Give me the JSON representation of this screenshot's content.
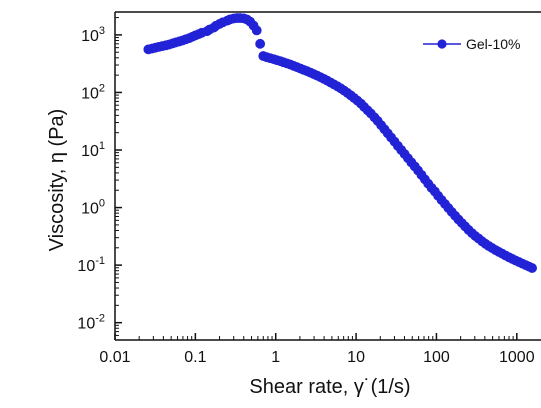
{
  "chart_data": {
    "type": "scatter",
    "title": "",
    "xlabel": "Shear rate, γ˙(1/s)",
    "ylabel": "Viscosity, η (Pa)",
    "x_scale": "log",
    "y_scale": "log",
    "xlim": [
      0.01,
      2000
    ],
    "ylim": [
      0.005,
      2500
    ],
    "grid": false,
    "legend_position": "top-right",
    "x_ticks": [
      {
        "value": 0.01,
        "label": "0.01"
      },
      {
        "value": 0.1,
        "label": "0.1"
      },
      {
        "value": 1,
        "label": "1"
      },
      {
        "value": 10,
        "label": "10"
      },
      {
        "value": 100,
        "label": "100"
      },
      {
        "value": 1000,
        "label": "1000"
      }
    ],
    "y_ticks": [
      {
        "value": 0.01,
        "base": "10",
        "exp": "-2"
      },
      {
        "value": 0.1,
        "base": "10",
        "exp": "-1"
      },
      {
        "value": 1,
        "base": "10",
        "exp": "0"
      },
      {
        "value": 10,
        "base": "10",
        "exp": "1"
      },
      {
        "value": 100,
        "base": "10",
        "exp": "2"
      },
      {
        "value": 1000,
        "base": "10",
        "exp": "3"
      }
    ],
    "series": [
      {
        "name": "Gel-10%",
        "color": "#2222d6",
        "marker": "circle",
        "points": [
          [
            0.026,
            560
          ],
          [
            0.029,
            580
          ],
          [
            0.032,
            600
          ],
          [
            0.035,
            620
          ],
          [
            0.039,
            640
          ],
          [
            0.043,
            660
          ],
          [
            0.047,
            680
          ],
          [
            0.052,
            710
          ],
          [
            0.057,
            740
          ],
          [
            0.063,
            770
          ],
          [
            0.069,
            800
          ],
          [
            0.076,
            840
          ],
          [
            0.084,
            880
          ],
          [
            0.092,
            930
          ],
          [
            0.1,
            980
          ],
          [
            0.11,
            1030
          ],
          [
            0.12,
            1090
          ],
          [
            0.14,
            1160
          ],
          [
            0.15,
            1240
          ],
          [
            0.17,
            1340
          ],
          [
            0.18,
            1440
          ],
          [
            0.2,
            1550
          ],
          [
            0.22,
            1660
          ],
          [
            0.25,
            1770
          ],
          [
            0.27,
            1860
          ],
          [
            0.3,
            1930
          ],
          [
            0.33,
            1960
          ],
          [
            0.36,
            1960
          ],
          [
            0.4,
            1940
          ],
          [
            0.44,
            1850
          ],
          [
            0.48,
            1700
          ],
          [
            0.53,
            1450
          ],
          [
            0.58,
            1200
          ],
          [
            0.64,
            700
          ],
          [
            0.7,
            430
          ],
          [
            0.77,
            410
          ],
          [
            0.85,
            395
          ],
          [
            0.94,
            380
          ],
          [
            1.03,
            365
          ],
          [
            1.14,
            350
          ],
          [
            1.25,
            335
          ],
          [
            1.38,
            320
          ],
          [
            1.52,
            305
          ],
          [
            1.67,
            290
          ],
          [
            1.84,
            275
          ],
          [
            2.03,
            260
          ],
          [
            2.23,
            247
          ],
          [
            2.46,
            234
          ],
          [
            2.71,
            221
          ],
          [
            2.98,
            208
          ],
          [
            3.28,
            196
          ],
          [
            3.61,
            184
          ],
          [
            3.98,
            172
          ],
          [
            4.38,
            160
          ],
          [
            4.82,
            149
          ],
          [
            5.31,
            138
          ],
          [
            5.85,
            128
          ],
          [
            6.44,
            118
          ],
          [
            7.09,
            108
          ],
          [
            7.81,
            98
          ],
          [
            8.6,
            89
          ],
          [
            9.47,
            80
          ],
          [
            10.4,
            72
          ],
          [
            11.5,
            64
          ],
          [
            12.6,
            56
          ],
          [
            13.9,
            49
          ],
          [
            15.3,
            43
          ],
          [
            16.9,
            37
          ],
          [
            18.6,
            32
          ],
          [
            20.5,
            27
          ],
          [
            22.5,
            23
          ],
          [
            24.8,
            19.5
          ],
          [
            27.3,
            16.5
          ],
          [
            30.1,
            14
          ],
          [
            33.1,
            11.8
          ],
          [
            36.5,
            10
          ],
          [
            40.2,
            8.5
          ],
          [
            44.2,
            7.2
          ],
          [
            48.7,
            6.1
          ],
          [
            53.7,
            5.2
          ],
          [
            59.1,
            4.4
          ],
          [
            65.1,
            3.7
          ],
          [
            71.7,
            3.1
          ],
          [
            78.9,
            2.6
          ],
          [
            86.9,
            2.2
          ],
          [
            95.7,
            1.9
          ],
          [
            105,
            1.6
          ],
          [
            116,
            1.35
          ],
          [
            128,
            1.15
          ],
          [
            141,
            0.98
          ],
          [
            155,
            0.84
          ],
          [
            171,
            0.72
          ],
          [
            188,
            0.62
          ],
          [
            207,
            0.54
          ],
          [
            228,
            0.47
          ],
          [
            251,
            0.41
          ],
          [
            277,
            0.36
          ],
          [
            305,
            0.32
          ],
          [
            335,
            0.29
          ],
          [
            369,
            0.26
          ],
          [
            407,
            0.235
          ],
          [
            448,
            0.215
          ],
          [
            493,
            0.198
          ],
          [
            543,
            0.183
          ],
          [
            598,
            0.17
          ],
          [
            659,
            0.158
          ],
          [
            725,
            0.147
          ],
          [
            799,
            0.137
          ],
          [
            880,
            0.128
          ],
          [
            969,
            0.12
          ],
          [
            1067,
            0.113
          ],
          [
            1175,
            0.106
          ],
          [
            1294,
            0.1
          ],
          [
            1425,
            0.094
          ],
          [
            1550,
            0.089
          ]
        ]
      }
    ]
  }
}
